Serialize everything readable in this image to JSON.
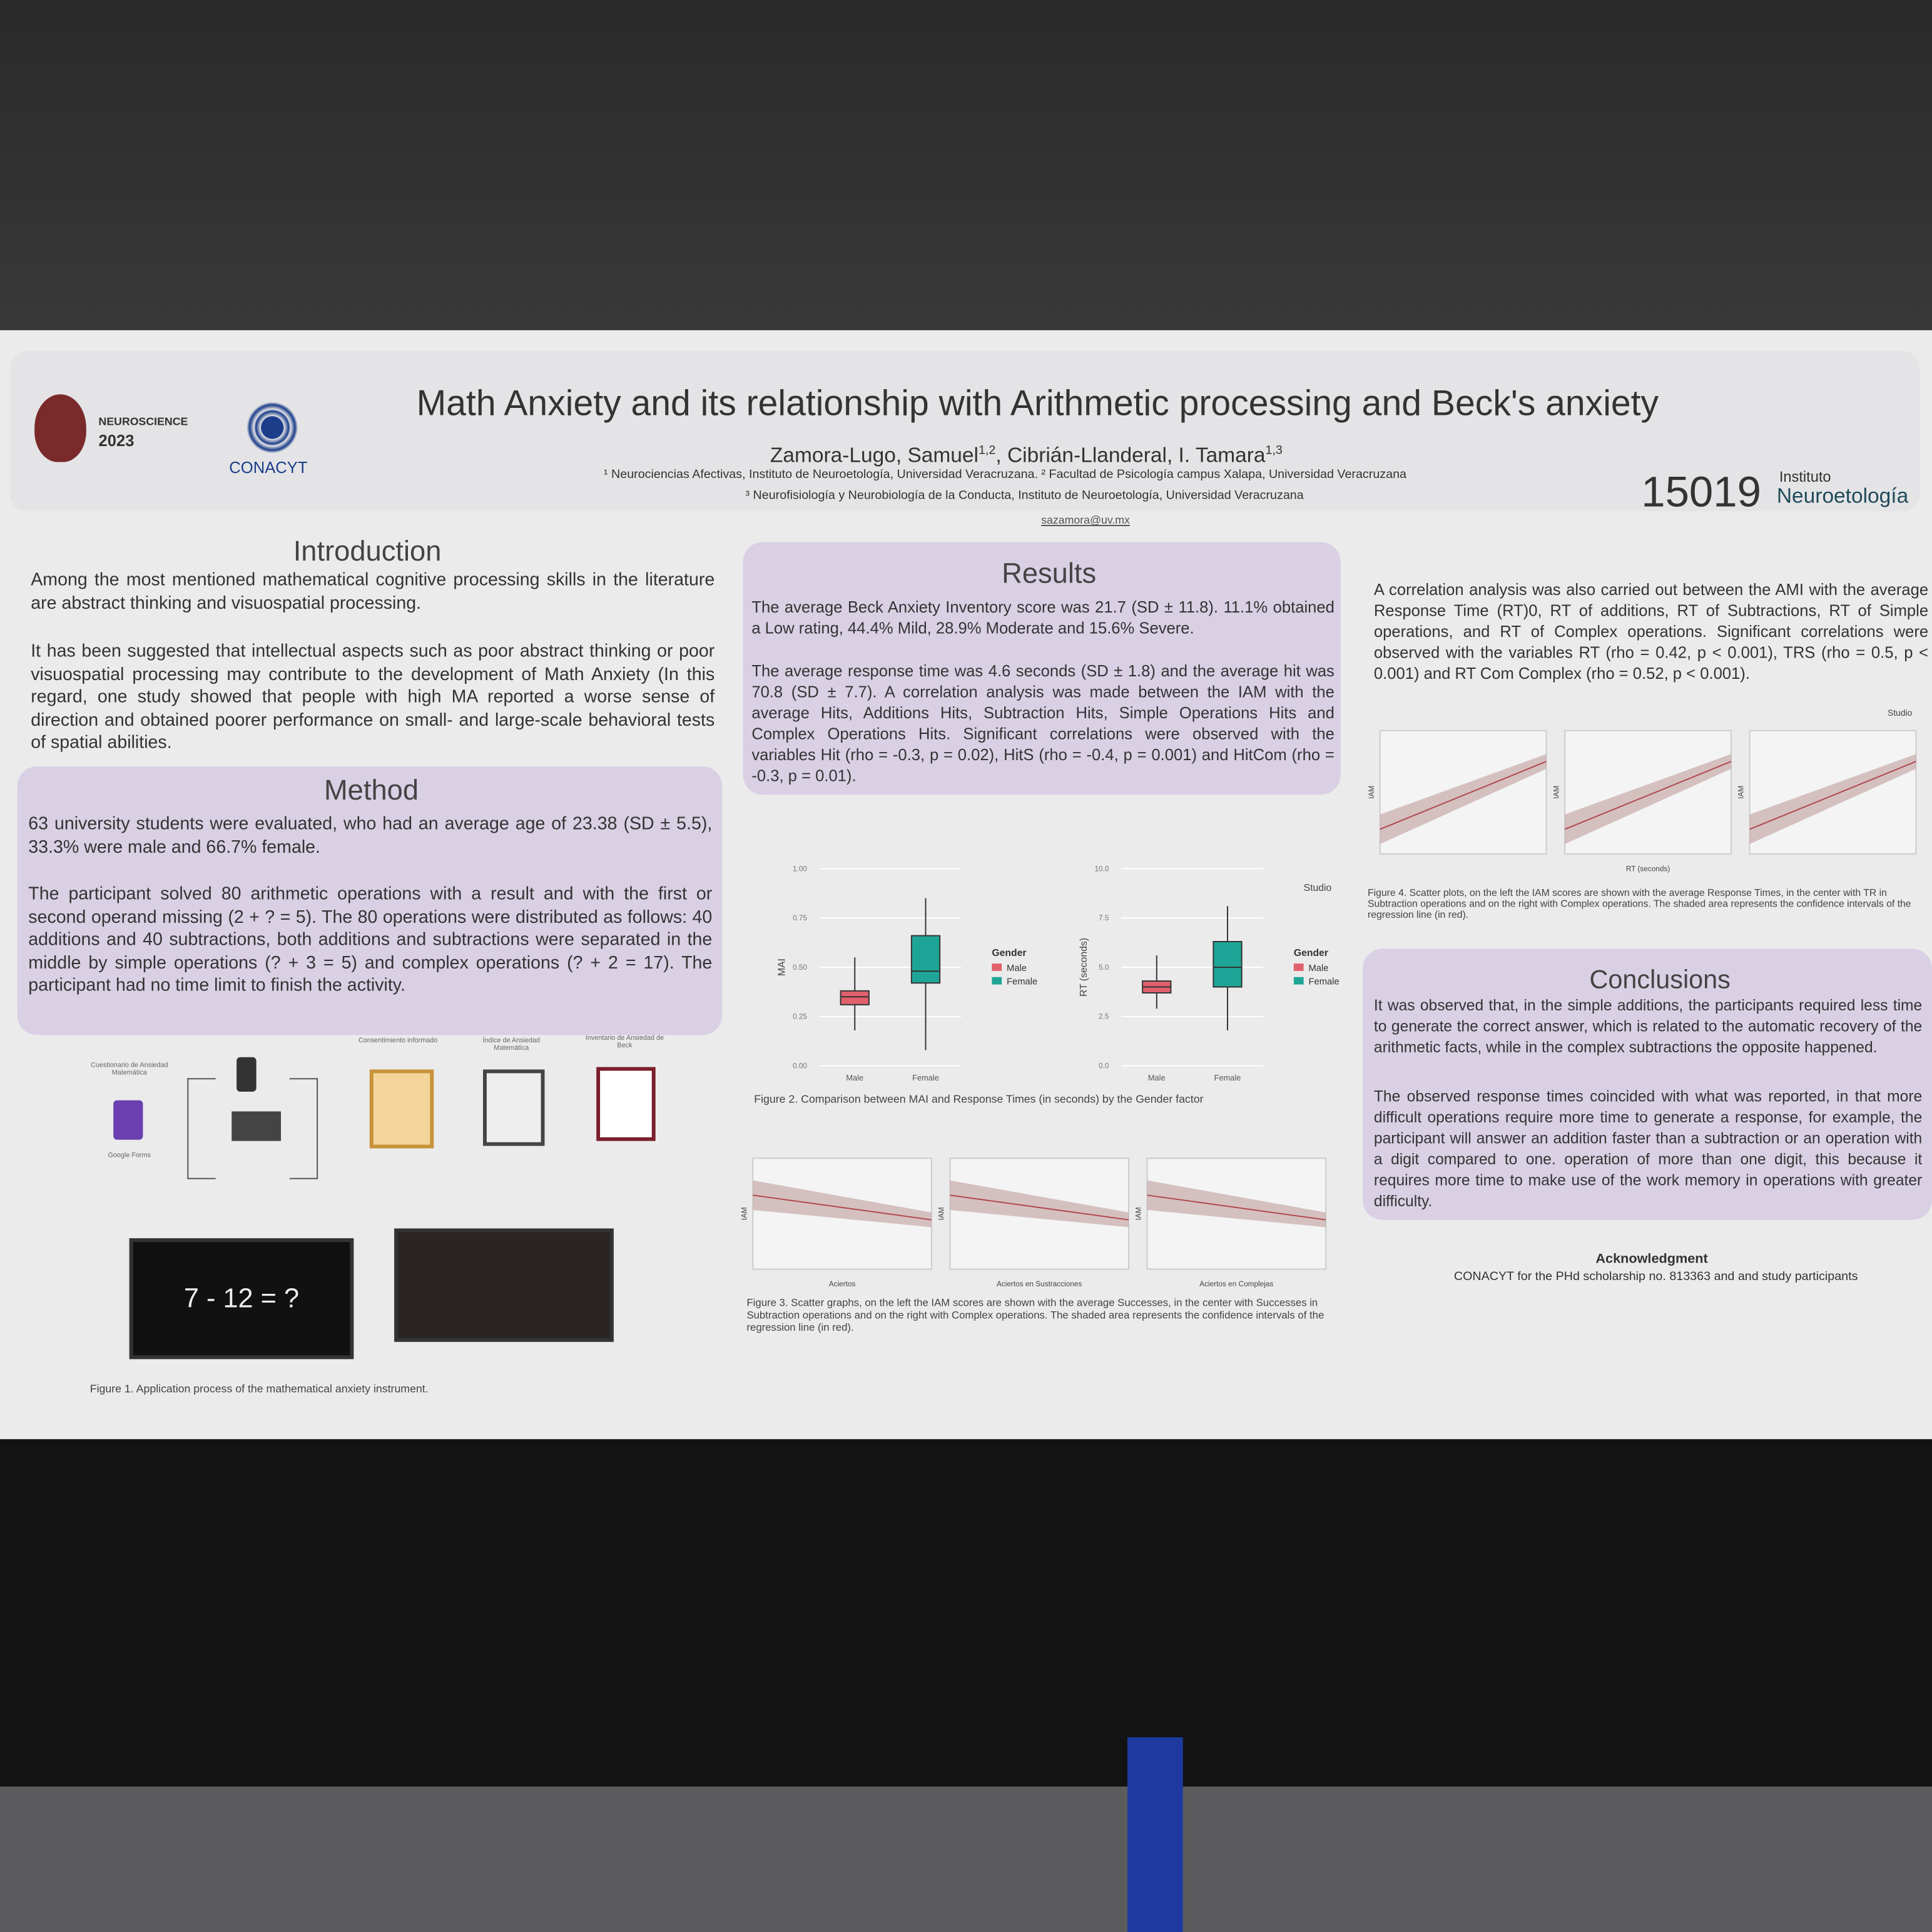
{
  "header": {
    "badge": "NEUROSCIENCE",
    "year": "2023",
    "sponsor": "CONACYT",
    "title": "Math Anxiety and its relationship with Arithmetic processing and Beck's anxiety",
    "authors": [
      {
        "name": "Zamora-Lugo, Samuel",
        "sup": "1,2"
      },
      {
        "name": "Cibrián-Llanderal, I. Tamara",
        "sup": "1,3"
      }
    ],
    "affiliations": [
      "¹ Neurociencias Afectivas, Instituto de Neuroetología, Universidad Veracruzana. ² Facultad de Psicología campus Xalapa, Universidad Veracruzana",
      "³ Neurofisiología y Neurobiología de la Conducta, Instituto de Neuroetología, Universidad Veracruzana"
    ],
    "email": "sazamora@uv.mx",
    "poster_number": "15019",
    "institute": [
      "Instituto",
      "Neuroetología"
    ]
  },
  "introduction": {
    "heading": "Introduction",
    "paragraphs": [
      "Among the most mentioned mathematical cognitive processing skills in the literature are abstract thinking and visuospatial processing.",
      "It has been suggested that intellectual aspects such as poor abstract thinking or poor visuospatial processing may contribute to the development of Math Anxiety (In this regard, one study showed that people with high MA reported a worse sense of direction and obtained poorer performance on small- and large-scale behavioral tests of spatial abilities."
    ]
  },
  "method": {
    "heading": "Method",
    "paragraphs": [
      "63 university students were evaluated, who had an average age of 23.38 (SD ± 5.5), 33.3% were male and 66.7% female.",
      "The participant solved 80 arithmetic operations with a result and with the first or second operand missing (2 + ? = 5). The 80 operations were distributed as follows: 40 additions and 40 subtractions, both additions and subtractions were separated in the middle by simple operations (? + 3 = 5) and complex operations (? + 2 = 17). The participant had no time limit to finish the activity."
    ],
    "figure": {
      "labels": [
        "Cuestionario de Ansiedad Matemática",
        "Google Forms",
        "Consentimiento informado",
        "Índice de Ansiedad Matemática",
        "Inventario de Ansiedad de Beck"
      ],
      "screen": "7 - 12 = ?",
      "caption": "Figure 1. Application process of the mathematical anxiety instrument."
    }
  },
  "results": {
    "heading": "Results",
    "paragraphs": [
      "The average Beck Anxiety Inventory score was 21.7 (SD ± 11.8). 11.1% obtained a Low rating, 44.4% Mild, 28.9% Moderate and 15.6% Severe.",
      "The average response time was 4.6 seconds (SD ± 1.8) and the average hit was 70.8 (SD ± 7.7). A correlation analysis was made between the IAM with the average Hits, Additions Hits, Subtraction Hits, Simple Operations Hits and Complex Operations Hits. Significant correlations were observed with the variables Hit (rho = -0.3, p = 0.02), HitS (rho = -0.4, p = 0.001) and HitCom (rho = -0.3, p = 0.01)."
    ],
    "figure2": {
      "watermark": "Studio",
      "caption": "Figure 2. Comparison between MAI and Response Times (in seconds) by the Gender factor",
      "charts": [
        {
          "type": "box",
          "y_label": "MAI",
          "categories": [
            "Male",
            "Female"
          ],
          "legend_title": "Gender",
          "series": [
            {
              "name": "Male",
              "color": "#e0606b"
            },
            {
              "name": "Female",
              "color": "#1fa597"
            }
          ],
          "boxes": [
            {
              "min": 0.18,
              "q1": 0.31,
              "median": 0.35,
              "q3": 0.38,
              "max": 0.55
            },
            {
              "min": 0.08,
              "q1": 0.42,
              "median": 0.48,
              "q3": 0.66,
              "max": 0.85
            }
          ],
          "ylim": [
            0,
            1
          ],
          "yticks": [
            {
              "value": 0,
              "label": "0.00"
            },
            {
              "value": 0.25,
              "label": "0.25"
            },
            {
              "value": 0.5,
              "label": "0.50"
            },
            {
              "value": 0.75,
              "label": "0.75"
            },
            {
              "value": 1,
              "label": "1.00"
            }
          ]
        },
        {
          "type": "box",
          "y_label": "RT (seconds)",
          "categories": [
            "Male",
            "Female"
          ],
          "legend_title": "Gender",
          "series": [
            {
              "name": "Male",
              "color": "#e0606b"
            },
            {
              "name": "Female",
              "color": "#1fa597"
            }
          ],
          "boxes": [
            {
              "min": 2.9,
              "q1": 3.7,
              "median": 4.0,
              "q3": 4.3,
              "max": 5.6
            },
            {
              "min": 1.8,
              "q1": 4.0,
              "median": 5.0,
              "q3": 6.3,
              "max": 8.1
            }
          ],
          "ylim": [
            0,
            10
          ],
          "yticks": [
            {
              "value": 0,
              "label": "0.0"
            },
            {
              "value": 2.5,
              "label": "2.5"
            },
            {
              "value": 5,
              "label": "5.0"
            },
            {
              "value": 7.5,
              "label": "7.5"
            },
            {
              "value": 10,
              "label": "10.0"
            }
          ]
        }
      ]
    },
    "figure3": {
      "y_label": "IAM",
      "x_labels": [
        "Aciertos",
        "Aciertos en Sustracciones",
        "Aciertos en Complejas"
      ],
      "caption": "Figure 3. Scatter graphs, on the left the IAM scores are shown with the average Successes, in the center with Successes in Subtraction operations and on the right with Complex operations. The shaded area represents the confidence intervals of the regression line (in red)."
    }
  },
  "correlation": {
    "paragraph": "A correlation analysis was also carried out between the AMI with the average Response Time (RT)0, RT of additions, RT of Subtractions, RT of Simple operations, and RT of Complex operations. Significant correlations were observed with the variables RT (rho = 0.42, p < 0.001), TRS (rho = 0.5, p < 0.001) and RT Com Complex (rho = 0.52, p < 0.001).",
    "figure4": {
      "watermark": "Studio",
      "y_label": "IAM",
      "x_label": "RT (seconds)",
      "caption": "Figure 4. Scatter plots, on the left the IAM scores are shown with the average Response Times, in the center with TR in Subtraction operations and on the right with Complex operations. The shaded area represents the confidence intervals of the regression line (in red)."
    }
  },
  "conclusions": {
    "heading": "Conclusions",
    "paragraphs": [
      "It was observed that, in the simple additions, the participants required less time to generate the correct answer, which is related to the automatic recovery of the arithmetic facts, while in the complex subtractions the opposite happened.",
      "The observed response times coincided with what was reported, in that more difficult operations require more time to generate a response, for example, the participant will answer an addition faster than a subtraction or an operation with a digit compared to one. operation of more than one digit, this because it requires more time to make use of the work memory in operations with greater difficulty."
    ]
  },
  "acknowledgment": {
    "heading": "Acknowledgment",
    "text": "CONACYT for the PHd scholarship no. 813363 and and study participants"
  }
}
